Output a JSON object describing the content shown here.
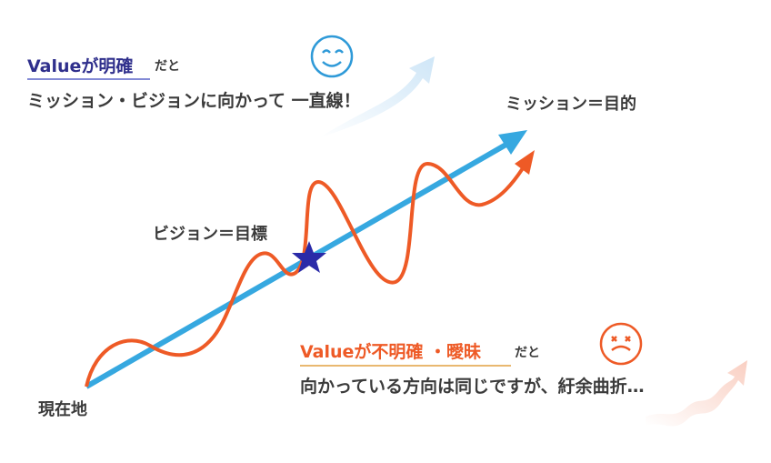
{
  "top_note": {
    "emphasis": "Valueが明確",
    "suffix": "だと",
    "line": "ミッション・ビジョンに向かって 一直線！"
  },
  "labels": {
    "mission": "ミッション＝目的",
    "vision": "ビジョン＝目標",
    "current": "現在地"
  },
  "bottom_note": {
    "emphasis": "Valueが不明確 ・曖昧",
    "suffix": "だと",
    "line": "向かっている方向は同じですが、紆余曲折…"
  }
}
